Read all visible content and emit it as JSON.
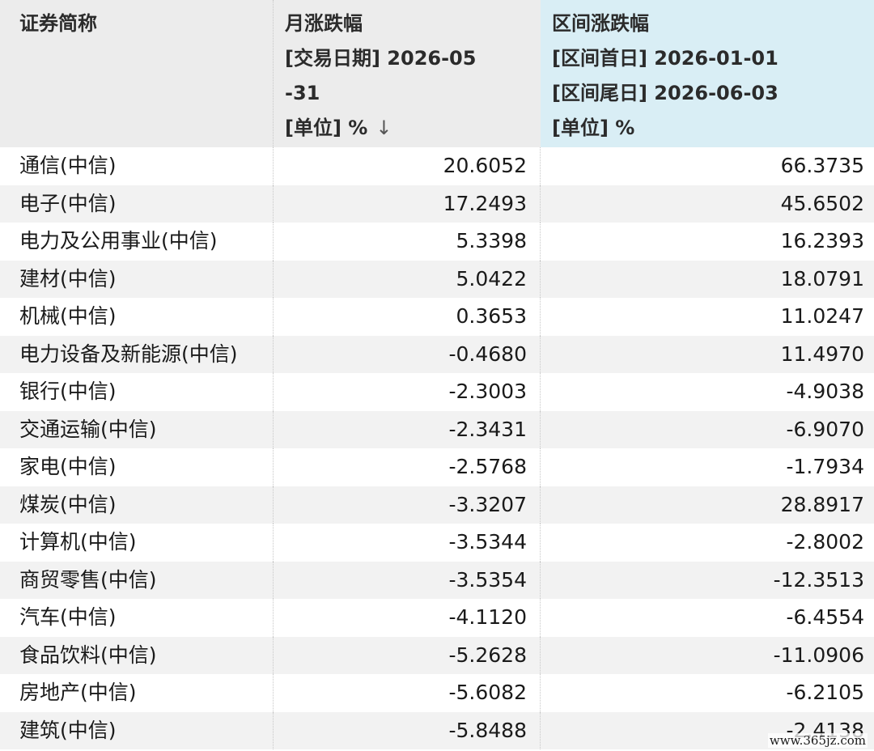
{
  "header": {
    "col1": "证券简称",
    "col2": [
      "月涨跌幅",
      "[交易日期] 2026-05",
      "-31",
      "[单位] %"
    ],
    "col2_sort_icon": "↓",
    "col3": [
      "区间涨跌幅",
      "[区间首日] 2026-01-01",
      "[区间尾日] 2026-06-03",
      "[单位] %"
    ]
  },
  "rows": [
    {
      "name": "通信(中信)",
      "month": "20.6052",
      "range": "66.3735"
    },
    {
      "name": "电子(中信)",
      "month": "17.2493",
      "range": "45.6502"
    },
    {
      "name": "电力及公用事业(中信)",
      "month": "5.3398",
      "range": "16.2393"
    },
    {
      "name": "建材(中信)",
      "month": "5.0422",
      "range": "18.0791"
    },
    {
      "name": "机械(中信)",
      "month": "0.3653",
      "range": "11.0247"
    },
    {
      "name": "电力设备及新能源(中信)",
      "month": "-0.4680",
      "range": "11.4970"
    },
    {
      "name": "银行(中信)",
      "month": "-2.3003",
      "range": "-4.9038"
    },
    {
      "name": "交通运输(中信)",
      "month": "-2.3431",
      "range": "-6.9070"
    },
    {
      "name": "家电(中信)",
      "month": "-2.5768",
      "range": "-1.7934"
    },
    {
      "name": "煤炭(中信)",
      "month": "-3.3207",
      "range": "28.8917"
    },
    {
      "name": "计算机(中信)",
      "month": "-3.5344",
      "range": "-2.8002"
    },
    {
      "name": "商贸零售(中信)",
      "month": "-3.5354",
      "range": "-12.3513"
    },
    {
      "name": "汽车(中信)",
      "month": "-4.1120",
      "range": "-6.4554"
    },
    {
      "name": "食品饮料(中信)",
      "month": "-5.2628",
      "range": "-11.0906"
    },
    {
      "name": "房地产(中信)",
      "month": "-5.6082",
      "range": "-6.2105"
    },
    {
      "name": "建筑(中信)",
      "month": "-5.8488",
      "range": "-2.4138"
    }
  ],
  "watermark": "www.365jz.com"
}
